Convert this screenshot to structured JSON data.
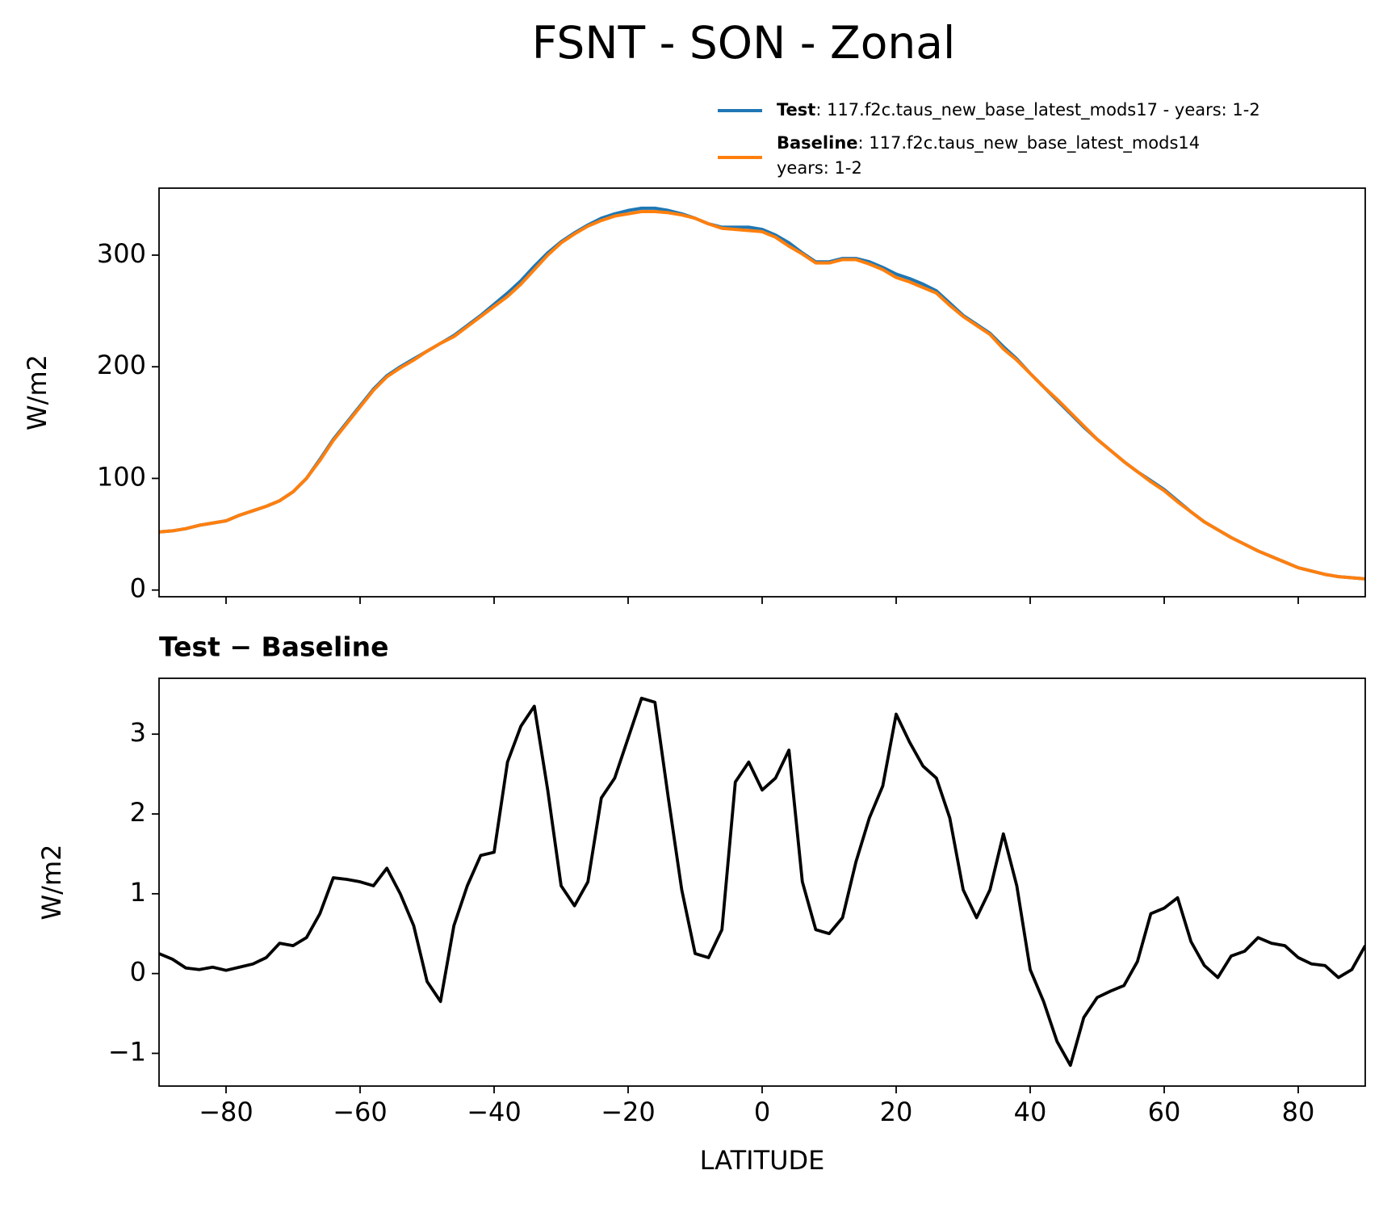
{
  "chart_data": [
    {
      "type": "line",
      "title": "FSNT - SON - Zonal",
      "ylabel": "W/m2",
      "x": [
        -90,
        -88,
        -86,
        -84,
        -82,
        -80,
        -78,
        -76,
        -74,
        -72,
        -70,
        -68,
        -66,
        -64,
        -62,
        -60,
        -58,
        -56,
        -54,
        -52,
        -50,
        -48,
        -46,
        -44,
        -42,
        -40,
        -38,
        -36,
        -34,
        -32,
        -30,
        -28,
        -26,
        -24,
        -22,
        -20,
        -18,
        -16,
        -14,
        -12,
        -10,
        -8,
        -6,
        -4,
        -2,
        0,
        2,
        4,
        6,
        8,
        10,
        12,
        14,
        16,
        18,
        20,
        22,
        24,
        26,
        28,
        30,
        32,
        34,
        36,
        38,
        40,
        42,
        44,
        46,
        48,
        50,
        52,
        54,
        56,
        58,
        60,
        62,
        64,
        66,
        68,
        70,
        72,
        74,
        76,
        78,
        80,
        82,
        84,
        86,
        88,
        90
      ],
      "series": [
        {
          "name": "Test",
          "legend_text": [
            ": 117.f2c.taus_new_base_latest_mods17 - years: 1-2"
          ],
          "color": "#1f77b4",
          "values": [
            52,
            53,
            55,
            58,
            60,
            62,
            67,
            71,
            75,
            80,
            88,
            100,
            117,
            135,
            150,
            165,
            180,
            192,
            200,
            207,
            214,
            221,
            228,
            237,
            246,
            256,
            266,
            277,
            290,
            302,
            312,
            320,
            327,
            333,
            337,
            340,
            342,
            342,
            340,
            337,
            333,
            328,
            325,
            325,
            325,
            323,
            318,
            311,
            302,
            294,
            294,
            297,
            297,
            294,
            289,
            283,
            279,
            274,
            268,
            257,
            246,
            238,
            230,
            218,
            207,
            194,
            182,
            170,
            158,
            146,
            135,
            125,
            115,
            106,
            98,
            90,
            80,
            70,
            61,
            54,
            47,
            41,
            35,
            30,
            25,
            20,
            17,
            14,
            12,
            11,
            10
          ]
        },
        {
          "name": "Baseline",
          "legend_text": [
            ": 117.f2c.taus_new_base_latest_mods14",
            "years: 1-2"
          ],
          "color": "#ff7f0e",
          "values": [
            52,
            53,
            55,
            58,
            60,
            62,
            67,
            71,
            75,
            80,
            88,
            100,
            116,
            134,
            149,
            164,
            179,
            191,
            199,
            206,
            214,
            221,
            227,
            236,
            245,
            254,
            263,
            274,
            287,
            300,
            311,
            319,
            326,
            331,
            335,
            337,
            339,
            339,
            338,
            336,
            333,
            328,
            324,
            323,
            322,
            321,
            316,
            308,
            301,
            293,
            293,
            296,
            296,
            292,
            287,
            280,
            276,
            271,
            266,
            255,
            245,
            237,
            229,
            216,
            206,
            194,
            182,
            171,
            159,
            147,
            135,
            125,
            115,
            106,
            97,
            89,
            79,
            70,
            61,
            54,
            47,
            41,
            35,
            30,
            25,
            20,
            17,
            14,
            12,
            11,
            10
          ]
        }
      ],
      "xlim": [
        -90,
        90
      ],
      "xticks": [
        -80,
        -60,
        -40,
        -20,
        0,
        20,
        40,
        60,
        80
      ],
      "ylim": [
        -6,
        360
      ],
      "yticks": [
        0,
        100,
        200,
        300
      ]
    },
    {
      "type": "line",
      "title": "Test − Baseline",
      "ylabel": "W/m2",
      "xlabel": "LATITUDE",
      "color": "#000000",
      "x": [
        -90,
        -88,
        -86,
        -84,
        -82,
        -80,
        -78,
        -76,
        -74,
        -72,
        -70,
        -68,
        -66,
        -64,
        -62,
        -60,
        -58,
        -56,
        -54,
        -52,
        -50,
        -48,
        -46,
        -44,
        -42,
        -40,
        -38,
        -36,
        -34,
        -32,
        -30,
        -28,
        -26,
        -24,
        -22,
        -20,
        -18,
        -16,
        -14,
        -12,
        -10,
        -8,
        -6,
        -4,
        -2,
        0,
        2,
        4,
        6,
        8,
        10,
        12,
        14,
        16,
        18,
        20,
        22,
        24,
        26,
        28,
        30,
        32,
        34,
        36,
        38,
        40,
        42,
        44,
        46,
        48,
        50,
        52,
        54,
        56,
        58,
        60,
        62,
        64,
        66,
        68,
        70,
        72,
        74,
        76,
        78,
        80,
        82,
        84,
        86,
        88,
        90
      ],
      "values": [
        0.25,
        0.18,
        0.07,
        0.05,
        0.08,
        0.04,
        0.08,
        0.12,
        0.2,
        0.38,
        0.35,
        0.45,
        0.75,
        1.2,
        1.18,
        1.15,
        1.1,
        1.32,
        1.0,
        0.6,
        -0.1,
        -0.35,
        0.6,
        1.1,
        1.48,
        1.52,
        2.65,
        3.1,
        3.35,
        2.3,
        1.1,
        0.85,
        1.15,
        2.2,
        2.45,
        2.95,
        3.45,
        3.4,
        2.2,
        1.05,
        0.25,
        0.2,
        0.55,
        2.4,
        2.65,
        2.3,
        2.45,
        2.8,
        1.15,
        0.55,
        0.5,
        0.7,
        1.4,
        1.95,
        2.35,
        3.25,
        2.9,
        2.6,
        2.45,
        1.95,
        1.05,
        0.7,
        1.05,
        1.75,
        1.1,
        0.05,
        -0.35,
        -0.85,
        -1.15,
        -0.55,
        -0.3,
        -0.22,
        -0.15,
        0.15,
        0.75,
        0.82,
        0.95,
        0.4,
        0.1,
        -0.05,
        0.22,
        0.28,
        0.45,
        0.38,
        0.35,
        0.2,
        0.12,
        0.1,
        -0.05,
        0.05,
        0.35
      ],
      "xlim": [
        -90,
        90
      ],
      "xticks": [
        {
          "value": -80,
          "label": "−80"
        },
        {
          "value": -60,
          "label": "−60"
        },
        {
          "value": -40,
          "label": "−40"
        },
        {
          "value": -20,
          "label": "−20"
        },
        0,
        20,
        40,
        60,
        80
      ],
      "ylim": [
        -1.41,
        3.7
      ],
      "yticks": [
        {
          "value": -1,
          "label": "−1"
        },
        0,
        1,
        2,
        3
      ]
    }
  ]
}
